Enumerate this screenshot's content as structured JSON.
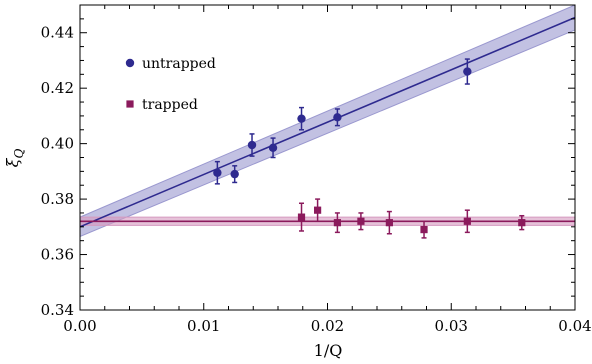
{
  "chart_data": {
    "type": "scatter",
    "xlabel": "1/Q",
    "ylabel": "ξ_Q",
    "xlim": [
      0.0,
      0.04
    ],
    "ylim": [
      0.34,
      0.45
    ],
    "xticks": [
      0.0,
      0.01,
      0.02,
      0.03,
      0.04
    ],
    "xtick_labels": [
      "0.00",
      "0.01",
      "0.02",
      "0.03",
      "0.04"
    ],
    "yticks": [
      0.34,
      0.36,
      0.38,
      0.4,
      0.42,
      0.44
    ],
    "ytick_labels": [
      "0.34",
      "0.36",
      "0.38",
      "0.40",
      "0.42",
      "0.44"
    ],
    "grid": false,
    "legend_placement": "top-left",
    "series": [
      {
        "name": "untrapped",
        "marker": "circle",
        "color": "#2e2a8f",
        "band_color": "#9a98cf",
        "x": [
          0.0111,
          0.0125,
          0.0139,
          0.0156,
          0.0179,
          0.0208,
          0.0313
        ],
        "y": [
          0.3895,
          0.389,
          0.3995,
          0.3985,
          0.409,
          0.4095,
          0.426
        ],
        "err": [
          0.004,
          0.003,
          0.004,
          0.0035,
          0.004,
          0.003,
          0.0045
        ],
        "fit": {
          "x": [
            0.0,
            0.04
          ],
          "y": [
            0.37,
            0.4455
          ],
          "band_halfwidth": [
            0.0035,
            0.0045
          ]
        }
      },
      {
        "name": "trapped",
        "marker": "square",
        "color": "#8b1a5c",
        "band_color": "#d59ac0",
        "x": [
          0.0179,
          0.0192,
          0.0208,
          0.0227,
          0.025,
          0.0278,
          0.0313,
          0.0357
        ],
        "y": [
          0.3735,
          0.376,
          0.3715,
          0.372,
          0.3715,
          0.369,
          0.372,
          0.3715
        ],
        "err": [
          0.005,
          0.004,
          0.0035,
          0.003,
          0.004,
          0.003,
          0.004,
          0.0025
        ],
        "fit": {
          "x": [
            0.0,
            0.04
          ],
          "y": [
            0.372,
            0.372
          ],
          "band_halfwidth": [
            0.0015,
            0.0015
          ]
        }
      }
    ]
  }
}
